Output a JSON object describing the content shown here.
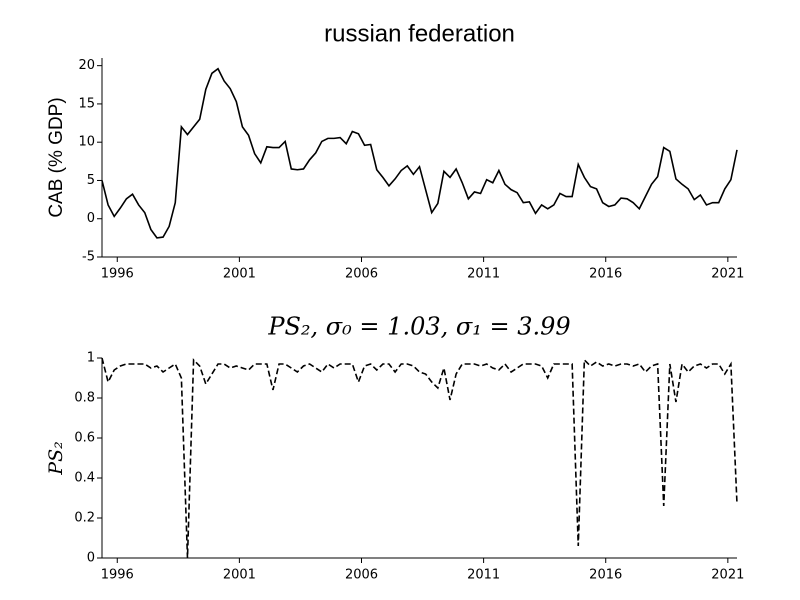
{
  "chart_data": [
    {
      "type": "line",
      "title": "russian federation",
      "ylabel": "CAB (% GDP)",
      "color": "#000000",
      "linestyle": "solid",
      "x": [
        1995.375,
        1995.625,
        1995.875,
        1996.125,
        1996.375,
        1996.625,
        1996.875,
        1997.125,
        1997.375,
        1997.625,
        1997.875,
        1998.125,
        1998.375,
        1998.625,
        1998.875,
        1999.125,
        1999.375,
        1999.625,
        1999.875,
        2000.125,
        2000.375,
        2000.625,
        2000.875,
        2001.125,
        2001.375,
        2001.625,
        2001.875,
        2002.125,
        2002.375,
        2002.625,
        2002.875,
        2003.125,
        2003.375,
        2003.625,
        2003.875,
        2004.125,
        2004.375,
        2004.625,
        2004.875,
        2005.125,
        2005.375,
        2005.625,
        2005.875,
        2006.125,
        2006.375,
        2006.625,
        2006.875,
        2007.125,
        2007.375,
        2007.625,
        2007.875,
        2008.125,
        2008.375,
        2008.625,
        2008.875,
        2009.125,
        2009.375,
        2009.625,
        2009.875,
        2010.125,
        2010.375,
        2010.625,
        2010.875,
        2011.125,
        2011.375,
        2011.625,
        2011.875,
        2012.125,
        2012.375,
        2012.625,
        2012.875,
        2013.125,
        2013.375,
        2013.625,
        2013.875,
        2014.125,
        2014.375,
        2014.625,
        2014.875,
        2015.125,
        2015.375,
        2015.625,
        2015.875,
        2016.125,
        2016.375,
        2016.625,
        2016.875,
        2017.125,
        2017.375,
        2017.625,
        2017.875,
        2018.125,
        2018.375,
        2018.625,
        2018.875,
        2019.125,
        2019.375,
        2019.625,
        2019.875,
        2020.125,
        2020.375,
        2020.625,
        2020.875,
        2021.125,
        2021.375
      ],
      "values": [
        5.0,
        1.8,
        0.3,
        1.4,
        2.6,
        3.2,
        1.8,
        0.8,
        -1.4,
        -2.5,
        -2.4,
        -1.0,
        2.1,
        12,
        11,
        12,
        13,
        16.9,
        19,
        19.6,
        18,
        17,
        15.3,
        12,
        10.9,
        8.5,
        7.3,
        9.4,
        9.3,
        9.3,
        10.1,
        6.5,
        6.4,
        6.5,
        7.7,
        8.6,
        10.1,
        10.5,
        10.5,
        10.6,
        9.8,
        11.4,
        11.1,
        9.6,
        9.7,
        6.4,
        5.4,
        4.3,
        5.2,
        6.3,
        6.9,
        5.8,
        6.8,
        3.8,
        0.8,
        2.0,
        6.2,
        5.4,
        6.5,
        4.7,
        2.6,
        3.5,
        3.3,
        5.1,
        4.7,
        6.3,
        4.5,
        3.8,
        3.4,
        2.1,
        2.2,
        0.7,
        1.8,
        1.3,
        1.8,
        3.3,
        2.9,
        2.9,
        7.1,
        5.4,
        4.2,
        3.9,
        2.1,
        1.6,
        1.8,
        2.7,
        2.6,
        2.1,
        1.3,
        2.9,
        4.5,
        5.5,
        9.3,
        8.8,
        5.2,
        4.5,
        3.9,
        2.5,
        3.1,
        1.8,
        2.1,
        2.1,
        3.9,
        5.1,
        9.0
      ],
      "xlim": [
        1995.375,
        2021.375
      ],
      "xticks": [
        1996,
        2001,
        2006,
        2011,
        2016,
        2021
      ],
      "ylim": [
        -5,
        21
      ],
      "yticks": [
        -5,
        0,
        5,
        10,
        15,
        20
      ]
    },
    {
      "type": "line",
      "title": "PS₂, σ₀ = 1.03, σ₁ = 3.99",
      "ylabel": "PS₂",
      "color": "#000000",
      "linestyle": "dashed",
      "x": [
        1995.375,
        1995.625,
        1995.875,
        1996.125,
        1996.375,
        1996.625,
        1996.875,
        1997.125,
        1997.375,
        1997.625,
        1997.875,
        1998.125,
        1998.375,
        1998.625,
        1998.875,
        1999.125,
        1999.375,
        1999.625,
        1999.875,
        2000.125,
        2000.375,
        2000.625,
        2000.875,
        2001.125,
        2001.375,
        2001.625,
        2001.875,
        2002.125,
        2002.375,
        2002.625,
        2002.875,
        2003.125,
        2003.375,
        2003.625,
        2003.875,
        2004.125,
        2004.375,
        2004.625,
        2004.875,
        2005.125,
        2005.375,
        2005.625,
        2005.875,
        2006.125,
        2006.375,
        2006.625,
        2006.875,
        2007.125,
        2007.375,
        2007.625,
        2007.875,
        2008.125,
        2008.375,
        2008.625,
        2008.875,
        2009.125,
        2009.375,
        2009.625,
        2009.875,
        2010.125,
        2010.375,
        2010.625,
        2010.875,
        2011.125,
        2011.375,
        2011.625,
        2011.875,
        2012.125,
        2012.375,
        2012.625,
        2012.875,
        2013.125,
        2013.375,
        2013.625,
        2013.875,
        2014.125,
        2014.375,
        2014.625,
        2014.875,
        2015.125,
        2015.375,
        2015.625,
        2015.875,
        2016.125,
        2016.375,
        2016.625,
        2016.875,
        2017.125,
        2017.375,
        2017.625,
        2017.875,
        2018.125,
        2018.375,
        2018.625,
        2018.875,
        2019.125,
        2019.375,
        2019.625,
        2019.875,
        2020.125,
        2020.375,
        2020.625,
        2020.875,
        2021.125,
        2021.375
      ],
      "values": [
        1.0,
        0.88,
        0.94,
        0.96,
        0.97,
        0.97,
        0.97,
        0.97,
        0.95,
        0.96,
        0.93,
        0.95,
        0.97,
        0.9,
        0.0,
        0.99,
        0.96,
        0.87,
        0.92,
        0.97,
        0.97,
        0.95,
        0.96,
        0.95,
        0.94,
        0.97,
        0.97,
        0.97,
        0.84,
        0.97,
        0.97,
        0.95,
        0.93,
        0.96,
        0.97,
        0.95,
        0.93,
        0.97,
        0.95,
        0.97,
        0.97,
        0.97,
        0.88,
        0.96,
        0.97,
        0.94,
        0.97,
        0.97,
        0.93,
        0.97,
        0.97,
        0.96,
        0.93,
        0.92,
        0.88,
        0.85,
        0.95,
        0.79,
        0.92,
        0.97,
        0.97,
        0.97,
        0.96,
        0.97,
        0.95,
        0.94,
        0.97,
        0.93,
        0.95,
        0.97,
        0.97,
        0.97,
        0.96,
        0.9,
        0.97,
        0.97,
        0.97,
        0.97,
        0.06,
        0.99,
        0.96,
        0.98,
        0.96,
        0.97,
        0.96,
        0.97,
        0.97,
        0.96,
        0.97,
        0.93,
        0.96,
        0.97,
        0.26,
        0.97,
        0.78,
        0.97,
        0.93,
        0.96,
        0.97,
        0.95,
        0.97,
        0.97,
        0.92,
        0.97,
        0.27
      ],
      "xlim": [
        1995.375,
        2021.375
      ],
      "xticks": [
        1996,
        2001,
        2006,
        2011,
        2016,
        2021
      ],
      "ylim": [
        0,
        1
      ],
      "yticks": [
        0,
        0.2,
        0.4,
        0.6,
        0.8,
        1
      ]
    }
  ]
}
